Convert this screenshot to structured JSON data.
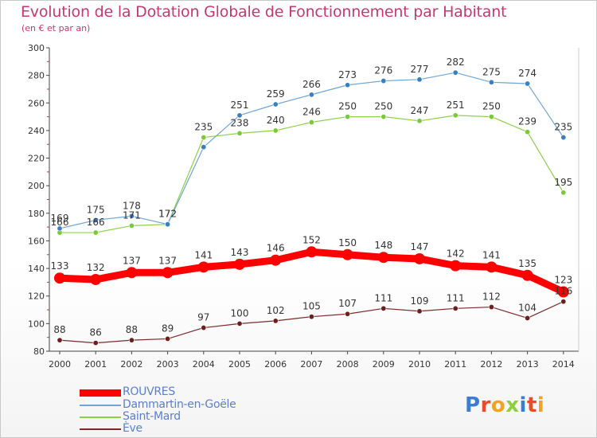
{
  "title": "Evolution de la Dotation Globale de Fonctionnement par Habitant",
  "subtitle": "(en € et par an)",
  "logo_text": "Proxiti",
  "chart_data": {
    "type": "line",
    "x": [
      "2000",
      "2001",
      "2002",
      "2003",
      "2004",
      "2005",
      "2006",
      "2007",
      "2008",
      "2009",
      "2010",
      "2011",
      "2012",
      "2013",
      "2014"
    ],
    "ylim": [
      80,
      300
    ],
    "yticks": [
      80,
      100,
      120,
      140,
      160,
      180,
      200,
      220,
      240,
      260,
      280,
      300
    ],
    "grid": false,
    "legend_position": "bottom-left",
    "series": [
      {
        "name": "ROUVRES",
        "color": "#ff0000",
        "values": [
          133,
          132,
          137,
          137,
          141,
          143,
          146,
          152,
          150,
          148,
          147,
          142,
          141,
          135,
          123
        ],
        "label_color": "#333333"
      },
      {
        "name": "Dammartin-en-Goële",
        "color": "#6fa4d6",
        "marker": "#3a7fc0",
        "values": [
          169,
          175,
          178,
          172,
          228,
          251,
          259,
          266,
          273,
          276,
          277,
          282,
          275,
          274,
          235
        ],
        "labels": [
          "169",
          "175",
          "178",
          "172",
          "",
          "251",
          "259",
          "266",
          "273",
          "276",
          "277",
          "282",
          "275",
          "274",
          "235"
        ]
      },
      {
        "name": "Saint-Mard",
        "color": "#8cd04a",
        "marker": "#7ac93a",
        "values": [
          166,
          166,
          171,
          172,
          235,
          238,
          240,
          246,
          250,
          250,
          247,
          251,
          250,
          239,
          195
        ],
        "labels": [
          "166",
          "166",
          "171",
          "172",
          "235",
          "238",
          "240",
          "246",
          "250",
          "250",
          "247",
          "251",
          "250",
          "239",
          "195"
        ]
      },
      {
        "name": "Ève",
        "color": "#7a2a2a",
        "marker": "#6b1f1f",
        "values": [
          88,
          86,
          88,
          89,
          97,
          100,
          102,
          105,
          107,
          111,
          109,
          111,
          112,
          104,
          116
        ],
        "labels": [
          "88",
          "86",
          "88",
          "89",
          "97",
          "100",
          "102",
          "105",
          "107",
          "111",
          "109",
          "111",
          "112",
          "104",
          "116"
        ]
      }
    ]
  }
}
